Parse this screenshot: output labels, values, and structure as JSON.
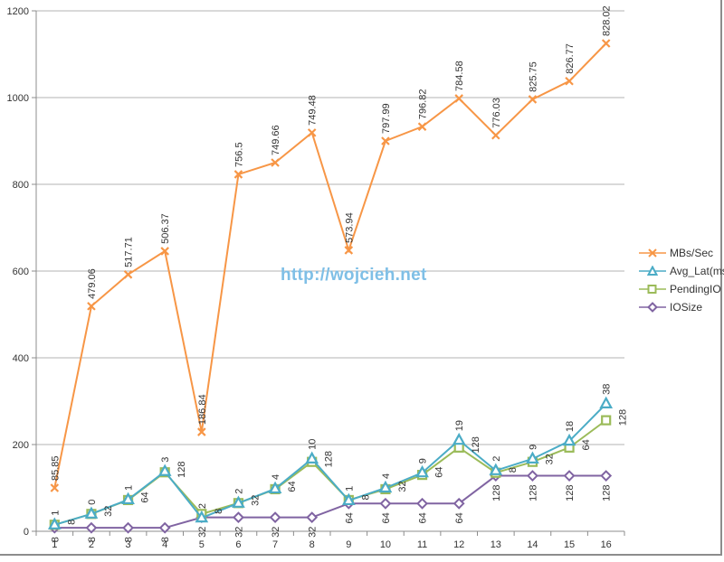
{
  "chart_data": {
    "type": "line",
    "title": "",
    "xlabel": "",
    "ylabel": "",
    "ylim": [
      0,
      1200
    ],
    "yticks": [
      0,
      200,
      400,
      600,
      800,
      1000,
      1200
    ],
    "grid": true,
    "legend_position": "right",
    "categories": [
      "1",
      "2",
      "3",
      "4",
      "5",
      "6",
      "7",
      "8",
      "9",
      "10",
      "11",
      "12",
      "13",
      "14",
      "15",
      "16"
    ],
    "series": [
      {
        "name": "MBs/Sec",
        "color": "#f79646",
        "marker": "x",
        "values": [
          100,
          519,
          592,
          646,
          229,
          823,
          850,
          919,
          648,
          900,
          933,
          998,
          913,
          996,
          1038,
          1125
        ],
        "data_labels": [
          "85.85",
          "479.06",
          "517.71",
          "506.37",
          "186.84",
          "756.5",
          "749.66",
          "749.48",
          "573.94",
          "797.99",
          "796.82",
          "784.58",
          "776.03",
          "825.75",
          "826.77",
          "828.02"
        ]
      },
      {
        "name": "Avg_Lat(ms)",
        "color": "#4bacc6",
        "marker": "triangle",
        "values": [
          15,
          40,
          73,
          138,
          31,
          65,
          98,
          167,
          71,
          100,
          135,
          210,
          140,
          167,
          208,
          294
        ],
        "data_labels": [
          "1",
          "0",
          "1",
          "3",
          "2",
          "2",
          "4",
          "10",
          "1",
          "4",
          "9",
          "19",
          "2",
          "9",
          "18",
          "38"
        ]
      },
      {
        "name": "PendingIO",
        "color": "#9bbb59",
        "marker": "square",
        "values": [
          15,
          40,
          72,
          136,
          40,
          65,
          97,
          160,
          72,
          97,
          130,
          193,
          135,
          160,
          193,
          256
        ],
        "data_labels": [
          "8",
          "32",
          "64",
          "128",
          "8",
          "32",
          "64",
          "128",
          "8",
          "32",
          "64",
          "128",
          "8",
          "32",
          "64",
          "128"
        ]
      },
      {
        "name": "IOSize",
        "color": "#8064a2",
        "marker": "diamond",
        "values": [
          8,
          8,
          8,
          8,
          32,
          32,
          32,
          32,
          64,
          64,
          64,
          64,
          128,
          128,
          128,
          128
        ],
        "data_labels": [
          "8",
          "8",
          "8",
          "8",
          "32",
          "32",
          "32",
          "32",
          "64",
          "64",
          "64",
          "64",
          "128",
          "128",
          "128",
          "128"
        ]
      }
    ]
  },
  "watermark": "http://wojcieh.net",
  "legend": {
    "items": [
      {
        "label": "MBs/Sec",
        "color": "#f79646"
      },
      {
        "label": "Avg_Lat(ms)",
        "color": "#4bacc6"
      },
      {
        "label": "PendingIO",
        "color": "#9bbb59"
      },
      {
        "label": "IOSize",
        "color": "#8064a2"
      }
    ]
  }
}
